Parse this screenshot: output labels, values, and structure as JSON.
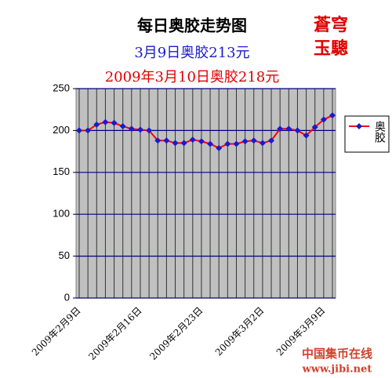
{
  "chart_data": {
    "type": "line",
    "title": "每日奥胶走势图",
    "subtitles": [
      "3月9日奥胶213元",
      "2009年3月10日奥胶218元"
    ],
    "stamp": [
      "蒼穹",
      "玉驄"
    ],
    "source": [
      "中国集币在线",
      "www.jibi.net"
    ],
    "categories": [
      "2009年2月9日",
      null,
      null,
      null,
      null,
      null,
      null,
      "2009年2月16日",
      null,
      null,
      null,
      null,
      null,
      null,
      "2009年2月23日",
      null,
      null,
      null,
      null,
      null,
      null,
      "2009年3月2日",
      null,
      null,
      null,
      null,
      null,
      null,
      "2009年3月9日",
      null
    ],
    "series": [
      {
        "name": "奥胶",
        "color": "#ff0000",
        "marker_color": "#1a1acc",
        "values": [
          200,
          200,
          207,
          210,
          209,
          205,
          202,
          201,
          200,
          188,
          188,
          185,
          185,
          189,
          187,
          184,
          179,
          184,
          184,
          187,
          188,
          185,
          188,
          202,
          202,
          200,
          194,
          204,
          213,
          218
        ]
      }
    ],
    "ylim": [
      0,
      250
    ],
    "yticks": [
      0,
      50,
      100,
      150,
      200,
      250
    ],
    "grid": true
  }
}
